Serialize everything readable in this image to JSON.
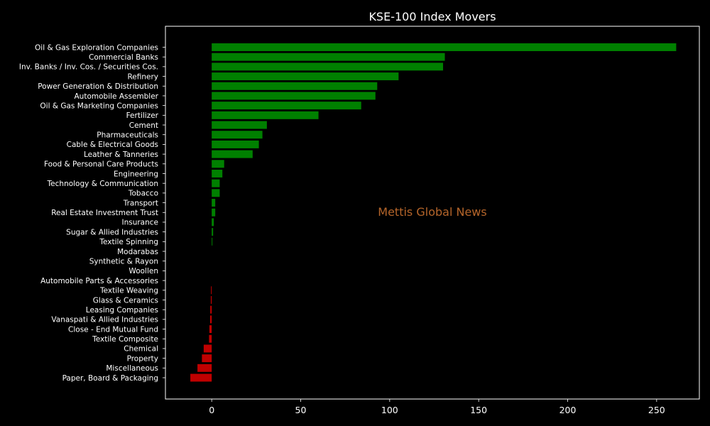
{
  "chart_data": {
    "type": "bar",
    "orientation": "horizontal",
    "title": "KSE-100 Index Movers",
    "watermark": "Mettis Global News",
    "xlim": [
      -26,
      274
    ],
    "xticks": [
      0,
      50,
      100,
      150,
      200,
      250
    ],
    "grid": false,
    "colors": {
      "background": "#000000",
      "text": "#ffffff",
      "positive": "#008000",
      "negative": "#c00000",
      "watermark": "#b5652a"
    },
    "categories": [
      "Oil & Gas Exploration Companies",
      "Commercial Banks",
      "Inv. Banks / Inv. Cos. / Securities Cos.",
      "Refinery",
      "Power Generation & Distribution",
      "Automobile Assembler",
      "Oil & Gas Marketing Companies",
      "Fertilizer",
      "Cement",
      "Pharmaceuticals",
      "Cable & Electrical Goods",
      "Leather & Tanneries",
      "Food & Personal Care Products",
      "Engineering",
      "Technology & Communication",
      "Tobacco",
      "Transport",
      "Real Estate Investment Trust",
      "Insurance",
      "Sugar & Allied Industries",
      "Textile Spinning",
      "Modarabas",
      "Synthetic & Rayon",
      "Woollen",
      "Automobile Parts & Accessories",
      "Textile Weaving",
      "Glass & Ceramics",
      "Leasing Companies",
      "Vanaspati & Allied Industries",
      "Close - End Mutual Fund",
      "Textile Composite",
      "Chemical",
      "Property",
      "Miscellaneous",
      "Paper, Board & Packaging"
    ],
    "values": [
      261,
      131,
      130,
      105,
      93,
      92,
      84,
      60,
      31,
      28.5,
      26.5,
      23,
      7,
      6,
      4.5,
      4.5,
      2,
      2,
      1.2,
      0.8,
      0.4,
      0,
      0,
      0,
      0,
      -0.4,
      -0.5,
      -0.8,
      -0.9,
      -1.3,
      -1.5,
      -4.5,
      -5.5,
      -8,
      -12
    ]
  }
}
